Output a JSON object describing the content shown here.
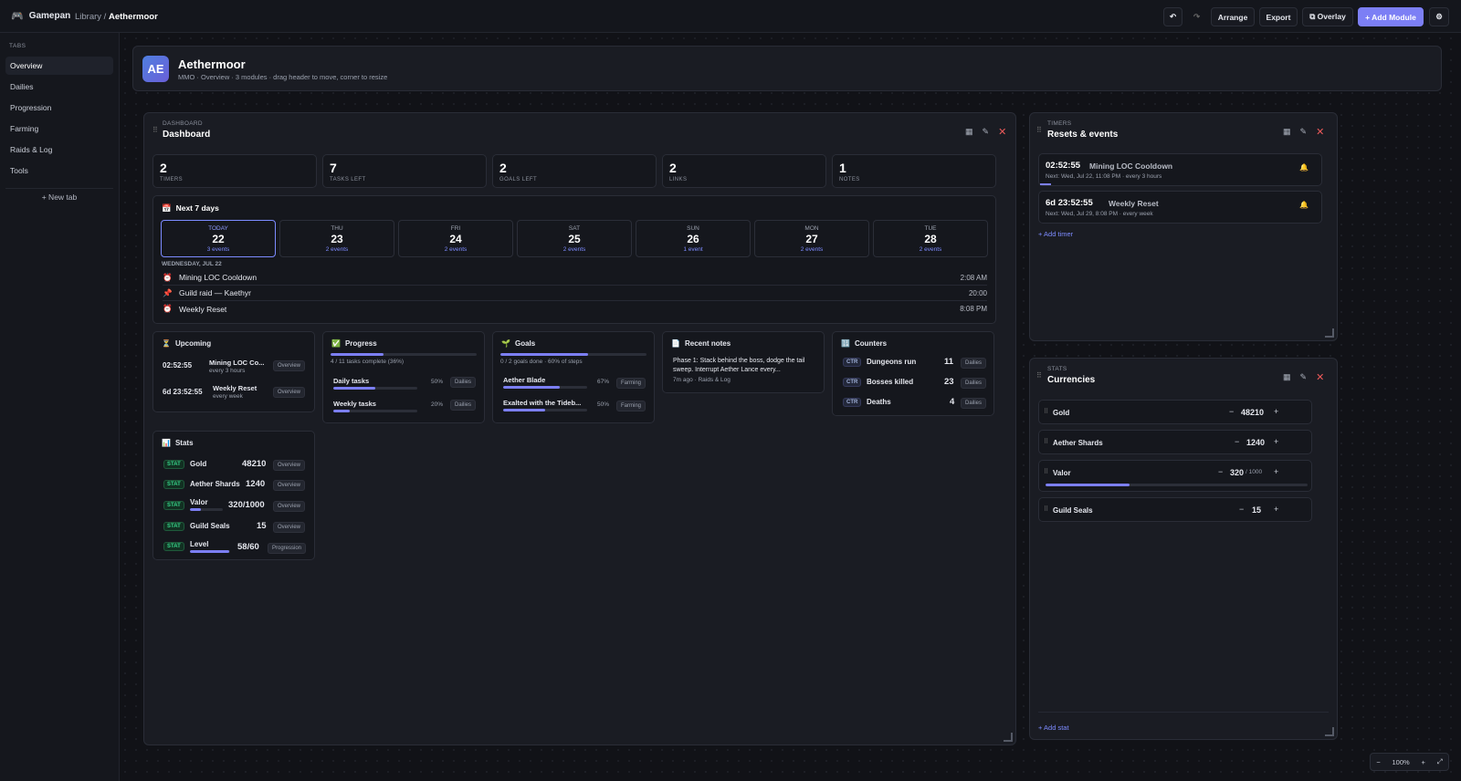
{
  "app": {
    "name": "Gamepan",
    "breadcrumb_root": "Library /",
    "breadcrumb_current": "Aethermoor"
  },
  "toolbar": {
    "undo": "↶",
    "redo": "↷",
    "arrange": "Arrange",
    "export": "Export",
    "overlay": "⧉ Overlay",
    "add_module": "+ Add Module",
    "settings": "⚙"
  },
  "sidebar": {
    "heading": "TABS",
    "items": [
      "Overview",
      "Dailies",
      "Progression",
      "Farming",
      "Raids & Log",
      "Tools"
    ],
    "new_tab": "+ New tab"
  },
  "game": {
    "initials": "AE",
    "title": "Aethermoor",
    "subtitle": "MMO · Overview · 3 modules · drag header to move, corner to resize"
  },
  "dashboard": {
    "kicker": "DASHBOARD",
    "title": "Dashboard",
    "stats": [
      {
        "value": "2",
        "label": "TIMERS"
      },
      {
        "value": "7",
        "label": "TASKS LEFT"
      },
      {
        "value": "2",
        "label": "GOALS LEFT"
      },
      {
        "value": "2",
        "label": "LINKS"
      },
      {
        "value": "1",
        "label": "NOTES"
      }
    ],
    "week_title": "Next 7 days",
    "days": [
      {
        "name": "TODAY",
        "date": "22",
        "events": "3 events"
      },
      {
        "name": "THU",
        "date": "23",
        "events": "2 events"
      },
      {
        "name": "FRI",
        "date": "24",
        "events": "2 events"
      },
      {
        "name": "SAT",
        "date": "25",
        "events": "2 events"
      },
      {
        "name": "SUN",
        "date": "26",
        "events": "1 event"
      },
      {
        "name": "MON",
        "date": "27",
        "events": "2 events"
      },
      {
        "name": "TUE",
        "date": "28",
        "events": "2 events"
      }
    ],
    "day_heading": "WEDNESDAY, JUL 22",
    "events": [
      {
        "icon": "⏰",
        "name": "Mining LOC Cooldown",
        "time": "2:08 AM"
      },
      {
        "icon": "📌",
        "name": "Guild raid — Kaethyr",
        "time": "20:00"
      },
      {
        "icon": "⏰",
        "name": "Weekly Reset",
        "time": "8:08 PM"
      }
    ],
    "upcoming": {
      "title": "Upcoming",
      "items": [
        {
          "time": "02:52:55",
          "name": "Mining LOC Co...",
          "sub": "every 3 hours",
          "tag": "Overview"
        },
        {
          "time": "6d 23:52:55",
          "name": "Weekly Reset",
          "sub": "every week",
          "tag": "Overview"
        }
      ]
    },
    "progress": {
      "title": "Progress",
      "summary": "4 / 11 tasks complete (36%)",
      "overall": 36,
      "items": [
        {
          "name": "Daily tasks",
          "pct": "50%",
          "value": 50,
          "tag": "Dailies"
        },
        {
          "name": "Weekly tasks",
          "pct": "20%",
          "value": 20,
          "tag": "Dailies"
        }
      ]
    },
    "goals": {
      "title": "Goals",
      "summary": "0 / 2 goals done · 60% of steps",
      "overall": 60,
      "items": [
        {
          "name": "Aether Blade",
          "pct": "67%",
          "value": 67,
          "tag": "Farming"
        },
        {
          "name": "Exalted with the Tideb...",
          "pct": "50%",
          "value": 50,
          "tag": "Farming"
        }
      ]
    },
    "notes": {
      "title": "Recent notes",
      "text": "Phase 1: Stack behind the boss, dodge the tail sweep. Interrupt Aether Lance every...",
      "meta": "7m ago · Raids & Log"
    },
    "counters": {
      "title": "Counters",
      "items": [
        {
          "badge": "CTR",
          "name": "Dungeons run",
          "value": "11",
          "tag": "Dailies"
        },
        {
          "badge": "CTR",
          "name": "Bosses killed",
          "value": "23",
          "tag": "Dailies"
        },
        {
          "badge": "CTR",
          "name": "Deaths",
          "value": "4",
          "tag": "Dailies"
        }
      ]
    },
    "stats_card": {
      "title": "Stats",
      "items": [
        {
          "badge": "STAT",
          "name": "Gold",
          "value": "48210",
          "tag": "Overview"
        },
        {
          "badge": "STAT",
          "name": "Aether Shards",
          "value": "1240",
          "tag": "Overview"
        },
        {
          "badge": "STAT",
          "name": "Valor",
          "value": "320/1000",
          "tag": "Overview",
          "progress": 32
        },
        {
          "badge": "STAT",
          "name": "Guild Seals",
          "value": "15",
          "tag": "Overview"
        },
        {
          "badge": "STAT",
          "name": "Level",
          "value": "58/60",
          "tag": "Progression",
          "progress": 97
        }
      ]
    }
  },
  "timers": {
    "kicker": "TIMERS",
    "title": "Resets & events",
    "items": [
      {
        "time": "02:52:55",
        "name": "Mining LOC Cooldown",
        "next": "Next: Wed, Jul 22, 11:08 PM · every 3 hours"
      },
      {
        "time": "6d 23:52:55",
        "name": "Weekly Reset",
        "next": "Next: Wed, Jul 29, 8:08 PM · every week"
      }
    ],
    "add": "+ Add timer"
  },
  "currencies": {
    "kicker": "STATS",
    "title": "Currencies",
    "items": [
      {
        "name": "Gold",
        "value": "48210"
      },
      {
        "name": "Aether Shards",
        "value": "1240"
      },
      {
        "name": "Valor",
        "value": "320",
        "max": "/ 1000",
        "progress": 32
      },
      {
        "name": "Guild Seals",
        "value": "15"
      }
    ],
    "add": "+ Add stat"
  },
  "zoom": {
    "level": "100%"
  }
}
